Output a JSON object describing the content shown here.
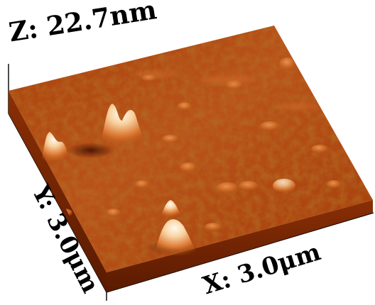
{
  "image": {
    "description_kind": "afm-3d-topography",
    "surface_colors": {
      "low": "#6e2300",
      "mid": "#b84d12",
      "high": "#e58a45",
      "peak": "#fff4e0"
    }
  },
  "labels": {
    "z_range": "Z: 22.7nm",
    "y_range": "Y: 3.0μm",
    "x_range": "X: 3.0μm"
  }
}
